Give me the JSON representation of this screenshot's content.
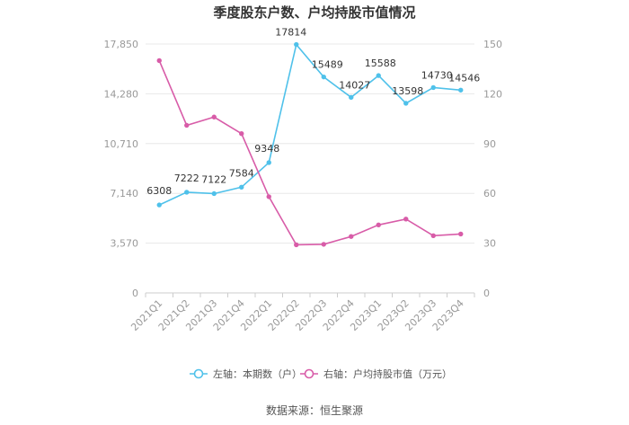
{
  "chart_data": {
    "type": "line",
    "title": "季度股东户数、户均持股市值情况",
    "categories": [
      "2021Q1",
      "2021Q2",
      "2021Q3",
      "2021Q4",
      "2022Q1",
      "2022Q2",
      "2022Q3",
      "2022Q4",
      "2023Q1",
      "2023Q2",
      "2023Q3",
      "2023Q4"
    ],
    "left_axis": {
      "ticks": [
        "0",
        "3,570",
        "7,140",
        "10,710",
        "14,280",
        "17,850"
      ],
      "ylim": [
        0,
        17850
      ]
    },
    "right_axis": {
      "ticks": [
        "0",
        "30",
        "60",
        "90",
        "120",
        "150"
      ],
      "ylim": [
        0,
        150
      ]
    },
    "series": [
      {
        "name": "左轴：本期数（户）",
        "axis": "left",
        "color": "#4fc1ea",
        "values": [
          6308,
          7222,
          7122,
          7584,
          9348,
          17814,
          15489,
          14027,
          15588,
          13598,
          14730,
          14546
        ],
        "labels": [
          "6308",
          "7222",
          "7122",
          "7584",
          "9348",
          "17814",
          "15489",
          "14027",
          "15588",
          "13598",
          "14730",
          "14546"
        ]
      },
      {
        "name": "右轴：户均持股市值（万元）",
        "axis": "right",
        "color": "#d85ca8",
        "values": [
          140,
          101,
          106,
          96,
          58,
          29,
          29.3,
          34,
          41,
          44.5,
          34.5,
          35.5
        ]
      }
    ],
    "grid": true,
    "legend_position": "bottom",
    "source": "数据来源：恒生聚源"
  }
}
